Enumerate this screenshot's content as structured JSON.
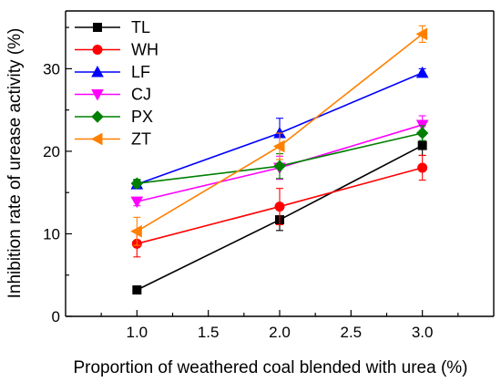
{
  "chart_data": {
    "type": "line",
    "title": "",
    "xlabel": "Proportion of weathered coal blended with urea  (%)",
    "ylabel": "Inhibition rate of urease activity (%)",
    "x": [
      1.0,
      2.0,
      3.0
    ],
    "xlim": [
      0.5,
      3.5
    ],
    "ylim": [
      0,
      37
    ],
    "x_ticks": [
      1.0,
      1.5,
      2.0,
      2.5,
      3.0
    ],
    "x_tick_labels": [
      "1.0",
      "1.5",
      "2.0",
      "2.5",
      "3.0"
    ],
    "y_ticks": [
      0,
      10,
      20,
      30
    ],
    "y_tick_labels": [
      "0",
      "10",
      "20",
      "30"
    ],
    "grid": false,
    "legend_position": "top-left",
    "series": [
      {
        "name": "TL",
        "color": "#000000",
        "marker": "square",
        "values": [
          3.2,
          11.7,
          20.7
        ],
        "error": [
          0.3,
          1.3,
          1.2
        ]
      },
      {
        "name": "WH",
        "color": "#ff0000",
        "marker": "circle",
        "values": [
          8.8,
          13.3,
          18.0
        ],
        "error": [
          1.6,
          2.2,
          1.5
        ]
      },
      {
        "name": "LF",
        "color": "#0000ff",
        "marker": "triangle-up",
        "values": [
          16.0,
          22.2,
          29.5
        ],
        "error": [
          0.5,
          1.8,
          0.5
        ]
      },
      {
        "name": "CJ",
        "color": "#ff00ff",
        "marker": "triangle-down",
        "values": [
          13.9,
          18.0,
          23.2
        ],
        "error": [
          0.5,
          1.4,
          1.1
        ]
      },
      {
        "name": "PX",
        "color": "#008000",
        "marker": "diamond",
        "values": [
          16.1,
          18.2,
          22.2
        ],
        "error": [
          0.5,
          1.5,
          0.9
        ]
      },
      {
        "name": "ZT",
        "color": "#ff8000",
        "marker": "triangle-left",
        "values": [
          10.3,
          20.6,
          34.2
        ],
        "error": [
          1.7,
          1.6,
          1.0
        ]
      }
    ]
  }
}
